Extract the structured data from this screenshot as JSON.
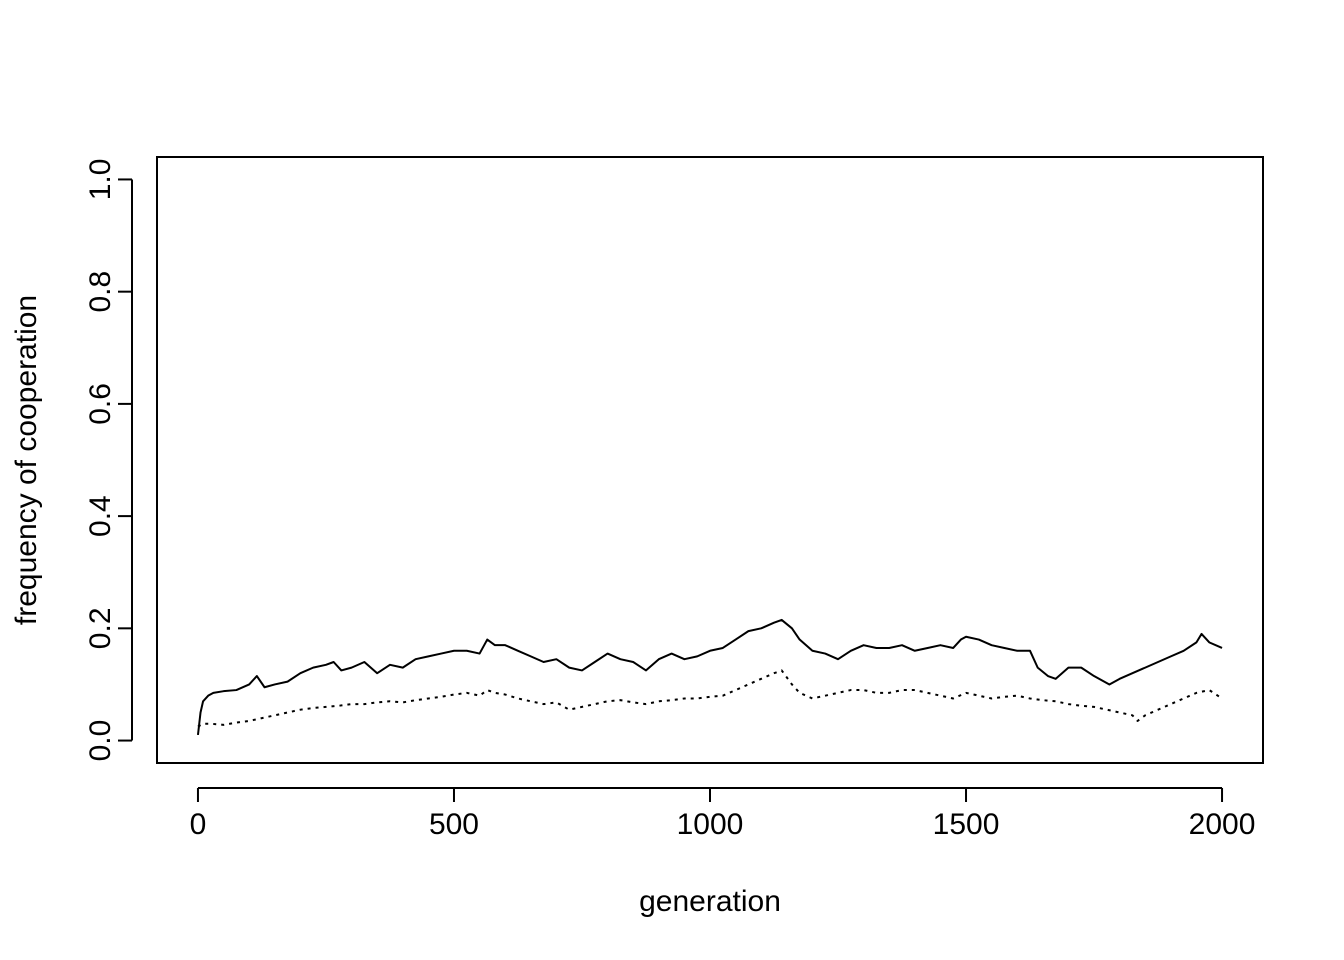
{
  "chart_data": {
    "type": "line",
    "xlabel": "generation",
    "ylabel": "frequency of cooperation",
    "xlim": [
      -80,
      2080
    ],
    "ylim": [
      -0.04,
      1.04
    ],
    "xticks": [
      0,
      500,
      1000,
      1500,
      2000
    ],
    "xtick_labels": [
      "0",
      "500",
      "1000",
      "1500",
      "2000"
    ],
    "yticks": [
      0.0,
      0.2,
      0.4,
      0.6,
      0.8,
      1.0
    ],
    "ytick_labels": [
      "0.0",
      "0.2",
      "0.4",
      "0.6",
      "0.8",
      "1.0"
    ],
    "grid": false,
    "legend": "none",
    "series": [
      {
        "style": "solid",
        "x": [
          0,
          5,
          10,
          20,
          30,
          50,
          75,
          100,
          115,
          130,
          150,
          175,
          200,
          225,
          250,
          265,
          280,
          300,
          325,
          350,
          375,
          400,
          425,
          450,
          475,
          500,
          525,
          550,
          565,
          580,
          600,
          625,
          650,
          675,
          700,
          725,
          750,
          775,
          800,
          825,
          850,
          875,
          900,
          925,
          950,
          975,
          1000,
          1025,
          1050,
          1075,
          1100,
          1125,
          1140,
          1160,
          1175,
          1200,
          1225,
          1250,
          1275,
          1300,
          1325,
          1350,
          1375,
          1400,
          1425,
          1450,
          1475,
          1490,
          1500,
          1525,
          1550,
          1575,
          1600,
          1625,
          1640,
          1660,
          1675,
          1700,
          1725,
          1750,
          1780,
          1800,
          1825,
          1850,
          1875,
          1900,
          1925,
          1950,
          1960,
          1975,
          2000
        ],
        "y": [
          0.01,
          0.05,
          0.07,
          0.08,
          0.085,
          0.088,
          0.09,
          0.1,
          0.115,
          0.095,
          0.1,
          0.105,
          0.12,
          0.13,
          0.135,
          0.14,
          0.125,
          0.13,
          0.14,
          0.12,
          0.135,
          0.13,
          0.145,
          0.15,
          0.155,
          0.16,
          0.16,
          0.155,
          0.18,
          0.17,
          0.17,
          0.16,
          0.15,
          0.14,
          0.145,
          0.13,
          0.125,
          0.14,
          0.155,
          0.145,
          0.14,
          0.125,
          0.145,
          0.155,
          0.145,
          0.15,
          0.16,
          0.165,
          0.18,
          0.195,
          0.2,
          0.21,
          0.215,
          0.2,
          0.18,
          0.16,
          0.155,
          0.145,
          0.16,
          0.17,
          0.165,
          0.165,
          0.17,
          0.16,
          0.165,
          0.17,
          0.165,
          0.18,
          0.185,
          0.18,
          0.17,
          0.165,
          0.16,
          0.16,
          0.13,
          0.115,
          0.11,
          0.13,
          0.13,
          0.115,
          0.1,
          0.11,
          0.12,
          0.13,
          0.14,
          0.15,
          0.16,
          0.175,
          0.19,
          0.175,
          0.165
        ]
      },
      {
        "style": "dotted",
        "x": [
          0,
          10,
          25,
          50,
          75,
          100,
          125,
          150,
          175,
          200,
          225,
          250,
          275,
          300,
          325,
          350,
          375,
          400,
          425,
          450,
          475,
          500,
          525,
          550,
          565,
          580,
          600,
          625,
          650,
          675,
          700,
          725,
          750,
          775,
          800,
          825,
          850,
          875,
          900,
          925,
          950,
          975,
          1000,
          1025,
          1050,
          1075,
          1100,
          1125,
          1140,
          1160,
          1175,
          1200,
          1225,
          1250,
          1275,
          1300,
          1325,
          1350,
          1375,
          1400,
          1425,
          1450,
          1475,
          1500,
          1525,
          1550,
          1575,
          1600,
          1625,
          1650,
          1675,
          1700,
          1725,
          1750,
          1775,
          1800,
          1825,
          1835,
          1850,
          1875,
          1900,
          1925,
          1950,
          1975,
          2000
        ],
        "y": [
          0.025,
          0.03,
          0.03,
          0.028,
          0.032,
          0.035,
          0.04,
          0.045,
          0.05,
          0.055,
          0.058,
          0.06,
          0.062,
          0.065,
          0.065,
          0.068,
          0.07,
          0.068,
          0.072,
          0.075,
          0.078,
          0.082,
          0.085,
          0.08,
          0.09,
          0.085,
          0.082,
          0.075,
          0.07,
          0.065,
          0.068,
          0.055,
          0.06,
          0.065,
          0.07,
          0.072,
          0.068,
          0.065,
          0.07,
          0.072,
          0.075,
          0.075,
          0.078,
          0.08,
          0.09,
          0.1,
          0.11,
          0.12,
          0.125,
          0.1,
          0.085,
          0.075,
          0.08,
          0.085,
          0.09,
          0.09,
          0.085,
          0.085,
          0.09,
          0.09,
          0.085,
          0.08,
          0.075,
          0.085,
          0.08,
          0.075,
          0.078,
          0.08,
          0.075,
          0.072,
          0.07,
          0.065,
          0.062,
          0.06,
          0.055,
          0.05,
          0.045,
          0.035,
          0.045,
          0.055,
          0.065,
          0.075,
          0.085,
          0.09,
          0.075
        ]
      }
    ]
  }
}
